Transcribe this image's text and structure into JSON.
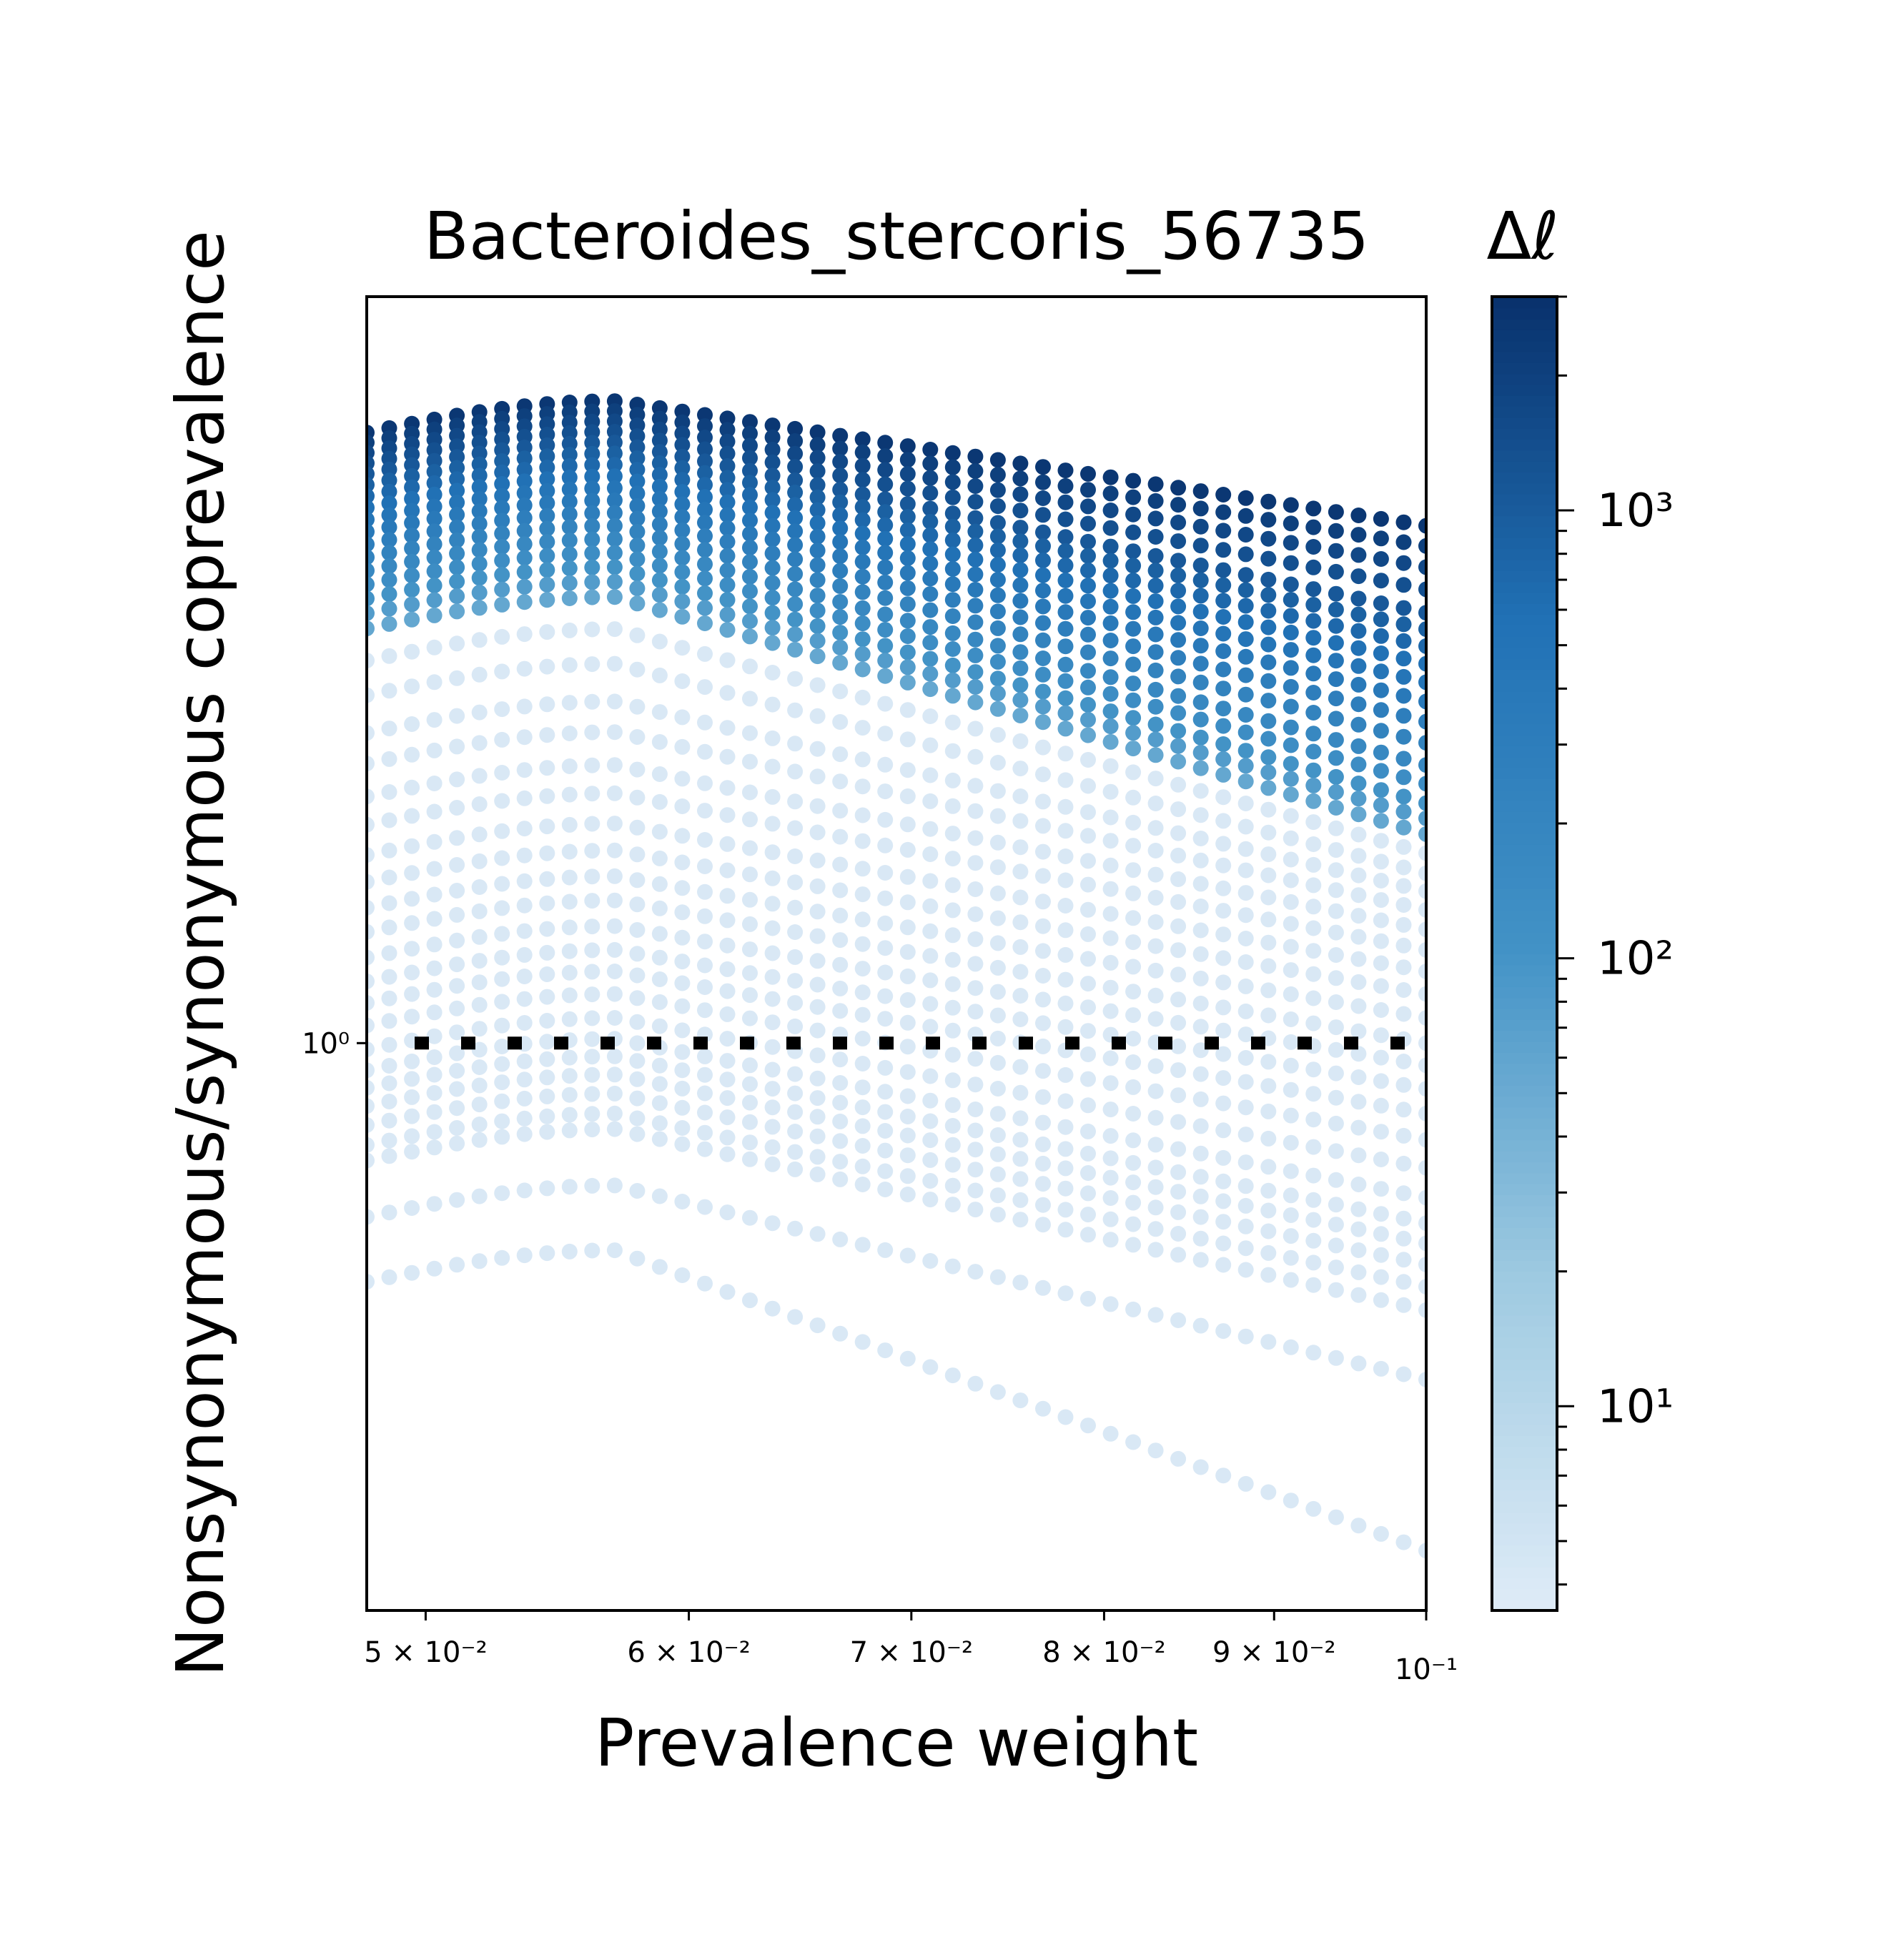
{
  "chart_data": {
    "type": "scatter",
    "title": "Bacteroides_stercoris_56735",
    "xlabel": "Prevalence weight",
    "ylabel": "Nonsynonymous/synonymous coprevalence",
    "x_scale": "log",
    "y_scale": "log",
    "xlim": [
      0.048,
      0.1
    ],
    "ylim": [
      0.27,
      5.6
    ],
    "x_ticks": [
      {
        "value": 0.05,
        "label": "5 × 10⁻²"
      },
      {
        "value": 0.06,
        "label": "6 × 10⁻²"
      },
      {
        "value": 0.07,
        "label": "7 × 10⁻²"
      },
      {
        "value": 0.08,
        "label": "8 × 10⁻²"
      },
      {
        "value": 0.09,
        "label": "9 × 10⁻²"
      },
      {
        "value": 0.1,
        "label": "10⁻¹"
      }
    ],
    "y_ticks": [
      {
        "value": 1,
        "label": "10⁰"
      }
    ],
    "reference_line": {
      "y": 1,
      "style": "dotted",
      "color": "#000000"
    },
    "colorbar": {
      "label": "Δℓ",
      "scale": "log",
      "range": [
        3.5,
        3000
      ],
      "ticks": [
        {
          "value": 10,
          "label": "10¹"
        },
        {
          "value": 100,
          "label": "10²"
        },
        {
          "value": 1000,
          "label": "10³"
        }
      ],
      "colormap": "Blues"
    },
    "curve_family": {
      "description_x_points_per_curve": 48,
      "peak_x": 0.057,
      "curves": [
        {
          "y_at_peak": 4.4,
          "y_at_end": 3.3,
          "delta_l": 2500
        },
        {
          "y_at_peak": 4.3,
          "y_at_end": 3.15,
          "delta_l": 2000
        },
        {
          "y_at_peak": 4.2,
          "y_at_end": 3.0,
          "delta_l": 1600
        },
        {
          "y_at_peak": 4.1,
          "y_at_end": 2.85,
          "delta_l": 1300
        },
        {
          "y_at_peak": 4.0,
          "y_at_end": 2.7,
          "delta_l": 1050
        },
        {
          "y_at_peak": 3.9,
          "y_at_end": 2.6,
          "delta_l": 850
        },
        {
          "y_at_peak": 3.8,
          "y_at_end": 2.5,
          "delta_l": 700
        },
        {
          "y_at_peak": 3.7,
          "y_at_end": 2.4,
          "delta_l": 560
        },
        {
          "y_at_peak": 3.6,
          "y_at_end": 2.3,
          "delta_l": 450
        },
        {
          "y_at_peak": 3.5,
          "y_at_end": 2.2,
          "delta_l": 360
        },
        {
          "y_at_peak": 3.4,
          "y_at_end": 2.1,
          "delta_l": 280
        },
        {
          "y_at_peak": 3.3,
          "y_at_end": 2.0,
          "delta_l": 220
        },
        {
          "y_at_peak": 3.2,
          "y_at_end": 1.9,
          "delta_l": 170
        },
        {
          "y_at_peak": 3.1,
          "y_at_end": 1.82,
          "delta_l": 130
        },
        {
          "y_at_peak": 3.0,
          "y_at_end": 1.74,
          "delta_l": 100
        },
        {
          "y_at_peak": 2.9,
          "y_at_end": 1.68,
          "delta_l": 75
        },
        {
          "y_at_peak": 2.8,
          "y_at_end": 1.62,
          "delta_l": 55
        },
        {
          "y_at_peak": 2.6,
          "y_at_end": 1.55,
          "delta_l": 4
        },
        {
          "y_at_peak": 2.4,
          "y_at_end": 1.48,
          "delta_l": 4
        },
        {
          "y_at_peak": 2.2,
          "y_at_end": 1.42,
          "delta_l": 4
        },
        {
          "y_at_peak": 2.05,
          "y_at_end": 1.36,
          "delta_l": 4
        },
        {
          "y_at_peak": 1.9,
          "y_at_end": 1.3,
          "delta_l": 4
        },
        {
          "y_at_peak": 1.78,
          "y_at_end": 1.24,
          "delta_l": 4
        },
        {
          "y_at_peak": 1.66,
          "y_at_end": 1.18,
          "delta_l": 4
        },
        {
          "y_at_peak": 1.56,
          "y_at_end": 1.12,
          "delta_l": 4
        },
        {
          "y_at_peak": 1.47,
          "y_at_end": 1.06,
          "delta_l": 4
        },
        {
          "y_at_peak": 1.39,
          "y_at_end": 1.0,
          "delta_l": 4
        },
        {
          "y_at_peak": 1.31,
          "y_at_end": 0.95,
          "delta_l": 4
        },
        {
          "y_at_peak": 1.24,
          "y_at_end": 0.9,
          "delta_l": 4
        },
        {
          "y_at_peak": 1.18,
          "y_at_end": 0.85,
          "delta_l": 4
        },
        {
          "y_at_peak": 1.12,
          "y_at_end": 0.8,
          "delta_l": 4
        },
        {
          "y_at_peak": 1.06,
          "y_at_end": 0.75,
          "delta_l": 4
        },
        {
          "y_at_peak": 1.01,
          "y_at_end": 0.7,
          "delta_l": 4
        },
        {
          "y_at_peak": 0.97,
          "y_at_end": 0.66,
          "delta_l": 4
        },
        {
          "y_at_peak": 0.93,
          "y_at_end": 0.63,
          "delta_l": 4
        },
        {
          "y_at_peak": 0.89,
          "y_at_end": 0.6,
          "delta_l": 4
        },
        {
          "y_at_peak": 0.85,
          "y_at_end": 0.57,
          "delta_l": 4
        },
        {
          "y_at_peak": 0.82,
          "y_at_end": 0.54,
          "delta_l": 4
        },
        {
          "y_at_peak": 0.72,
          "y_at_end": 0.46,
          "delta_l": 4
        },
        {
          "y_at_peak": 0.62,
          "y_at_end": 0.31,
          "delta_l": 4
        }
      ]
    }
  }
}
